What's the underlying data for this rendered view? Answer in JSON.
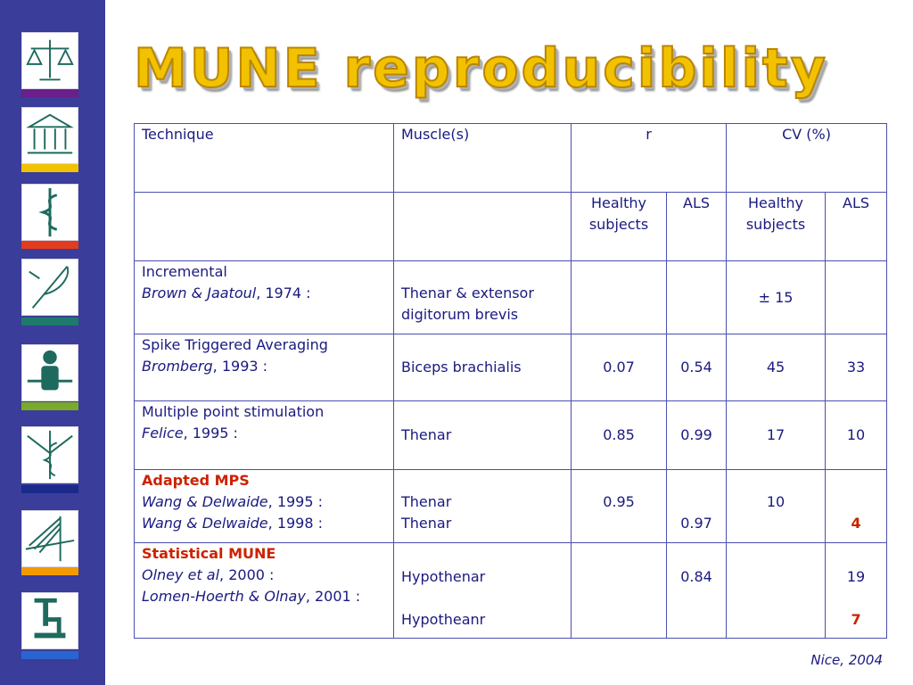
{
  "title": "MUNE reproducibility",
  "footer": "Nice, 2004",
  "sidebar": {
    "icons": [
      "scales-icon",
      "temple-icon",
      "caduceus-icon",
      "quill-icon",
      "person-icon",
      "medical-caduceus-icon",
      "bridge-icon",
      "microscope-icon"
    ],
    "bar_colors": [
      "#6a1f8a",
      "#f2c200",
      "#e23c1c",
      "#1e7a6a",
      "#7aaa2a",
      "#1a2a8a",
      "#f29a00",
      "#2a64d0"
    ]
  },
  "table": {
    "header": {
      "technique": "Technique",
      "muscles": "Muscle(s)",
      "r": "r",
      "cv": "CV (%)"
    },
    "subheader": {
      "r_healthy": "Healthy subjects",
      "r_als": "ALS",
      "cv_healthy": "Healthy subjects",
      "cv_als": "ALS"
    },
    "rows": [
      {
        "technique_line1": "Incremental",
        "technique_author": "Brown & Jaatoul",
        "technique_year": ", 1974 :",
        "muscle": "Thenar & extensor digitorum brevis",
        "cv_healthy": "± 15"
      },
      {
        "technique_line1": "Spike Triggered Averaging",
        "technique_author": "Bromberg",
        "technique_year": ", 1993 :",
        "muscle": "Biceps brachialis",
        "r_healthy": "0.07",
        "r_als": "0.54",
        "cv_healthy": "45",
        "cv_als": "33"
      },
      {
        "technique_line1": "Multiple point stimulation",
        "technique_author": "Felice",
        "technique_year": ", 1995 :",
        "muscle": "Thenar",
        "r_healthy": "0.85",
        "r_als": "0.99",
        "cv_healthy": "17",
        "cv_als": "10"
      },
      {
        "technique_line1": "Adapted MPS",
        "technique_author": "Wang & Delwaide",
        "technique_year": ", 1995 :",
        "technique_author2": "Wang & Delwaide",
        "technique_year2": ", 1998 :",
        "muscle": "Thenar",
        "muscle2": "Thenar",
        "r_healthy": "0.95",
        "r_als": "0.97",
        "cv_healthy": "10",
        "cv_als": "4"
      },
      {
        "technique_line1": "Statistical MUNE",
        "technique_author": "Olney et al",
        "technique_year": ", 2000 :",
        "technique_author2": "Lomen-Hoerth & Olnay",
        "technique_year2": ", 2001 :",
        "muscle": "Hypothenar",
        "muscle2": "Hypotheanr",
        "r_als": "0.84",
        "cv_als": "19",
        "cv_als2": "7"
      }
    ]
  }
}
